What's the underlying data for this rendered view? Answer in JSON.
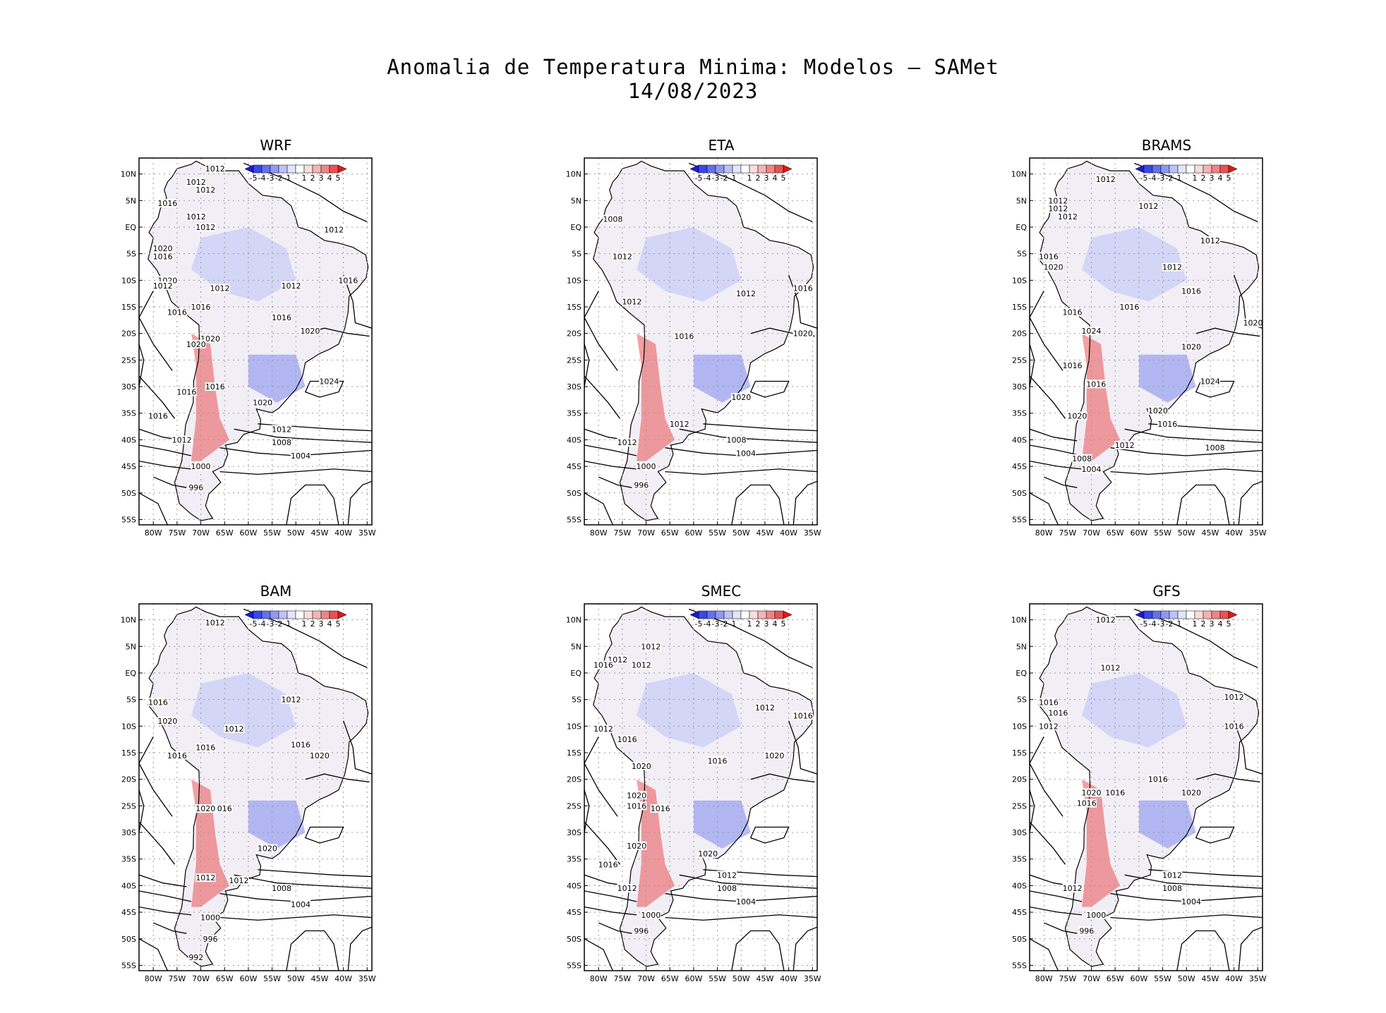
{
  "title": {
    "line1": "Anomalia de Temperatura Minima: Modelos — SAMet",
    "line2": "14/08/2023"
  },
  "axes": {
    "lat_labels": [
      "10N",
      "5N",
      "EQ",
      "5S",
      "10S",
      "15S",
      "20S",
      "25S",
      "30S",
      "35S",
      "40S",
      "45S",
      "50S",
      "55S"
    ],
    "lon_labels": [
      "80W",
      "75W",
      "70W",
      "65W",
      "60W",
      "55W",
      "50W",
      "45W",
      "40W",
      "35W"
    ]
  },
  "colorbar": {
    "labels": [
      "-5",
      "-4",
      "-3",
      "-2",
      "-1",
      "1",
      "2",
      "3",
      "4",
      "5"
    ],
    "colors": [
      "#1a1ad6",
      "#3a48e6",
      "#6470ee",
      "#8f98f2",
      "#bcc2f7",
      "#e2e4fa",
      "#ffffff",
      "#f9dcdc",
      "#f5b3b3",
      "#f08484",
      "#ea5252",
      "#e01818"
    ]
  },
  "panels": [
    {
      "title": "WRF",
      "isobars": [
        {
          "label": "1012",
          "lon": -67,
          "lat": 11
        },
        {
          "label": "1016",
          "lon": -77,
          "lat": 4.5
        },
        {
          "label": "1012",
          "lon": -71,
          "lat": 8.5
        },
        {
          "label": "1012",
          "lon": -69,
          "lat": 7
        },
        {
          "label": "1012",
          "lon": -71,
          "lat": 2
        },
        {
          "label": "1012",
          "lon": -69,
          "lat": 0
        },
        {
          "label": "1012",
          "lon": -42,
          "lat": -0.5
        },
        {
          "label": "1020",
          "lon": -78,
          "lat": -4
        },
        {
          "label": "1016",
          "lon": -78,
          "lat": -5.5
        },
        {
          "label": "1020",
          "lon": -77,
          "lat": -10
        },
        {
          "label": "1012",
          "lon": -78,
          "lat": -11
        },
        {
          "label": "1012",
          "lon": -66,
          "lat": -11.5
        },
        {
          "label": "1012",
          "lon": -51,
          "lat": -11
        },
        {
          "label": "1016",
          "lon": -39,
          "lat": -10
        },
        {
          "label": "1016",
          "lon": -75,
          "lat": -16
        },
        {
          "label": "1016",
          "lon": -70,
          "lat": -15
        },
        {
          "label": "1016",
          "lon": -53,
          "lat": -17
        },
        {
          "label": "1020",
          "lon": -47,
          "lat": -19.5
        },
        {
          "label": "1020",
          "lon": -68,
          "lat": -21
        },
        {
          "label": "1020",
          "lon": -71,
          "lat": -22
        },
        {
          "label": "1024",
          "lon": -43,
          "lat": -29
        },
        {
          "label": "1016",
          "lon": -73,
          "lat": -31
        },
        {
          "label": "1016",
          "lon": -67,
          "lat": -30
        },
        {
          "label": "1020",
          "lon": -57,
          "lat": -33
        },
        {
          "label": "1016",
          "lon": -79,
          "lat": -35.5
        },
        {
          "label": "1012",
          "lon": -53,
          "lat": -38
        },
        {
          "label": "1012",
          "lon": -74,
          "lat": -40
        },
        {
          "label": "1008",
          "lon": -53,
          "lat": -40.5
        },
        {
          "label": "1004",
          "lon": -49,
          "lat": -43
        },
        {
          "label": "1000",
          "lon": -70,
          "lat": -45
        },
        {
          "label": "996",
          "lon": -71,
          "lat": -49
        }
      ]
    },
    {
      "title": "ETA",
      "isobars": [
        {
          "label": "1008",
          "lon": -77,
          "lat": 1.5
        },
        {
          "label": "1012",
          "lon": -75,
          "lat": -5.5
        },
        {
          "label": "1012",
          "lon": -73,
          "lat": -14
        },
        {
          "label": "1012",
          "lon": -49,
          "lat": -12.5
        },
        {
          "label": "1016",
          "lon": -37,
          "lat": -11.5
        },
        {
          "label": "1016",
          "lon": -62,
          "lat": -20.5
        },
        {
          "label": "1020",
          "lon": -37,
          "lat": -20
        },
        {
          "label": "1020",
          "lon": -50,
          "lat": -32
        },
        {
          "label": "1012",
          "lon": -63,
          "lat": -37
        },
        {
          "label": "1012",
          "lon": -74,
          "lat": -40.5
        },
        {
          "label": "1008",
          "lon": -51,
          "lat": -40
        },
        {
          "label": "1004",
          "lon": -49,
          "lat": -42.5
        },
        {
          "label": "1000",
          "lon": -70,
          "lat": -45
        },
        {
          "label": "996",
          "lon": -71,
          "lat": -48.5
        }
      ]
    },
    {
      "title": "BRAMS",
      "isobars": [
        {
          "label": "1012",
          "lon": -67,
          "lat": 9
        },
        {
          "label": "1012",
          "lon": -77,
          "lat": 5
        },
        {
          "label": "1012",
          "lon": -77,
          "lat": 3.5
        },
        {
          "label": "1012",
          "lon": -75,
          "lat": 2
        },
        {
          "label": "1012",
          "lon": -58,
          "lat": 4
        },
        {
          "label": "1012",
          "lon": -45,
          "lat": -2.5
        },
        {
          "label": "1016",
          "lon": -79,
          "lat": -5.5
        },
        {
          "label": "1020",
          "lon": -78,
          "lat": -7.5
        },
        {
          "label": "1012",
          "lon": -53,
          "lat": -7.5
        },
        {
          "label": "1016",
          "lon": -49,
          "lat": -12
        },
        {
          "label": "1016",
          "lon": -74,
          "lat": -16
        },
        {
          "label": "1016",
          "lon": -62,
          "lat": -15
        },
        {
          "label": "1024",
          "lon": -70,
          "lat": -19.5
        },
        {
          "label": "1020",
          "lon": -36,
          "lat": -18
        },
        {
          "label": "1020",
          "lon": -49,
          "lat": -22.5
        },
        {
          "label": "1016",
          "lon": -74,
          "lat": -26
        },
        {
          "label": "1024",
          "lon": -45,
          "lat": -29
        },
        {
          "label": "1016",
          "lon": -69,
          "lat": -29.5
        },
        {
          "label": "1020",
          "lon": -56,
          "lat": -34.5
        },
        {
          "label": "1020",
          "lon": -73,
          "lat": -35.5
        },
        {
          "label": "1016",
          "lon": -54,
          "lat": -37
        },
        {
          "label": "1012",
          "lon": -63,
          "lat": -41
        },
        {
          "label": "1008",
          "lon": -44,
          "lat": -41.5
        },
        {
          "label": "1008",
          "lon": -72,
          "lat": -43.5
        },
        {
          "label": "1004",
          "lon": -70,
          "lat": -45.5
        }
      ]
    },
    {
      "title": "BAM",
      "isobars": [
        {
          "label": "1012",
          "lon": -67,
          "lat": 9.5
        },
        {
          "label": "1016",
          "lon": -79,
          "lat": -5.5
        },
        {
          "label": "1020",
          "lon": -77,
          "lat": -9
        },
        {
          "label": "1012",
          "lon": -51,
          "lat": -5
        },
        {
          "label": "1012",
          "lon": -63,
          "lat": -10.5
        },
        {
          "label": "1016",
          "lon": -69,
          "lat": -14
        },
        {
          "label": "1016",
          "lon": -49,
          "lat": -13.5
        },
        {
          "label": "1016",
          "lon": -75,
          "lat": -15.5
        },
        {
          "label": "1020",
          "lon": -45,
          "lat": -15.5
        },
        {
          "label": "1020",
          "lon": -69,
          "lat": -25.5
        },
        {
          "label": "016",
          "lon": -65,
          "lat": -25.5
        },
        {
          "label": "1020",
          "lon": -56,
          "lat": -33
        },
        {
          "label": "1012",
          "lon": -69,
          "lat": -38.5
        },
        {
          "label": "1012",
          "lon": -62,
          "lat": -39
        },
        {
          "label": "1008",
          "lon": -53,
          "lat": -40.5
        },
        {
          "label": "1004",
          "lon": -49,
          "lat": -43.5
        },
        {
          "label": "1000",
          "lon": -68,
          "lat": -46
        },
        {
          "label": "996",
          "lon": -68,
          "lat": -50
        },
        {
          "label": "992",
          "lon": -71,
          "lat": -53.5
        }
      ]
    },
    {
      "title": "SMEC",
      "isobars": [
        {
          "label": "1012",
          "lon": -69,
          "lat": 5
        },
        {
          "label": "1012",
          "lon": -76,
          "lat": 2.5
        },
        {
          "label": "1016",
          "lon": -79,
          "lat": 1.5
        },
        {
          "label": "1012",
          "lon": -71,
          "lat": 1.5
        },
        {
          "label": "1012",
          "lon": -45,
          "lat": -6.5
        },
        {
          "label": "1016",
          "lon": -37,
          "lat": -8
        },
        {
          "label": "1012",
          "lon": -79,
          "lat": -10.5
        },
        {
          "label": "1016",
          "lon": -74,
          "lat": -12.5
        },
        {
          "label": "1020",
          "lon": -43,
          "lat": -15.5
        },
        {
          "label": "1016",
          "lon": -55,
          "lat": -16.5
        },
        {
          "label": "1020",
          "lon": -71,
          "lat": -17.5
        },
        {
          "label": "1020",
          "lon": -72,
          "lat": -23
        },
        {
          "label": "1016",
          "lon": -72,
          "lat": -25
        },
        {
          "label": "1016",
          "lon": -67,
          "lat": -25.5
        },
        {
          "label": "1020",
          "lon": -72,
          "lat": -32.5
        },
        {
          "label": "1020",
          "lon": -57,
          "lat": -34
        },
        {
          "label": "1016",
          "lon": -78,
          "lat": -36
        },
        {
          "label": "1012",
          "lon": -53,
          "lat": -38
        },
        {
          "label": "1012",
          "lon": -74,
          "lat": -40.5
        },
        {
          "label": "1008",
          "lon": -53,
          "lat": -40.5
        },
        {
          "label": "1004",
          "lon": -49,
          "lat": -43
        },
        {
          "label": "1000",
          "lon": -69,
          "lat": -45.5
        },
        {
          "label": "996",
          "lon": -71,
          "lat": -48.5
        }
      ]
    },
    {
      "title": "GFS",
      "isobars": [
        {
          "label": "1012",
          "lon": -67,
          "lat": 10
        },
        {
          "label": "1012",
          "lon": -66,
          "lat": 1
        },
        {
          "label": "1012",
          "lon": -40,
          "lat": -4.5
        },
        {
          "label": "1016",
          "lon": -79,
          "lat": -5.5
        },
        {
          "label": "1016",
          "lon": -77,
          "lat": -7.5
        },
        {
          "label": "1012",
          "lon": -79,
          "lat": -10
        },
        {
          "label": "1016",
          "lon": -40,
          "lat": -10
        },
        {
          "label": "1016",
          "lon": -56,
          "lat": -20
        },
        {
          "label": "1020",
          "lon": -49,
          "lat": -22.5
        },
        {
          "label": "1020",
          "lon": -70,
          "lat": -22.5
        },
        {
          "label": "1016",
          "lon": -65,
          "lat": -22.5
        },
        {
          "label": "1016",
          "lon": -71,
          "lat": -24.5
        },
        {
          "label": "1012",
          "lon": -53,
          "lat": -38
        },
        {
          "label": "1008",
          "lon": -53,
          "lat": -40.5
        },
        {
          "label": "1012",
          "lon": -74,
          "lat": -40.5
        },
        {
          "label": "1004",
          "lon": -49,
          "lat": -43
        },
        {
          "label": "1000",
          "lon": -69,
          "lat": -45.5
        },
        {
          "label": "996",
          "lon": -71,
          "lat": -48.5
        }
      ]
    }
  ]
}
